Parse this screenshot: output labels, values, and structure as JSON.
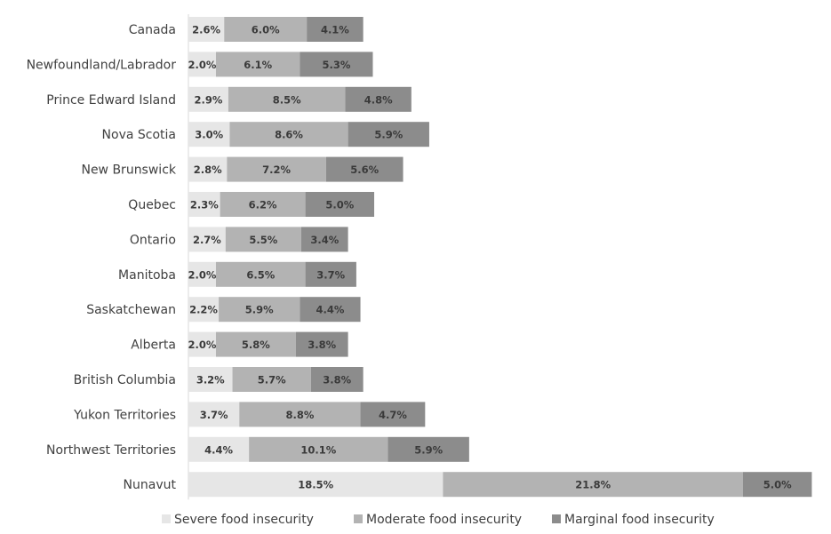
{
  "chart_data": {
    "type": "bar",
    "orientation": "horizontal",
    "stacked": true,
    "categories": [
      "Canada",
      "Newfoundland/Labrador",
      "Prince Edward Island",
      "Nova Scotia",
      "New Brunswick",
      "Quebec",
      "Ontario",
      "Manitoba",
      "Saskatchewan",
      "Alberta",
      "British Columbia",
      "Yukon Territories",
      "Northwest Territories",
      "Nunavut"
    ],
    "series": [
      {
        "name": "Severe food insecurity",
        "color": "#e6e6e6",
        "values": [
          2.6,
          2.0,
          2.9,
          3.0,
          2.8,
          2.3,
          2.7,
          2.0,
          2.2,
          2.0,
          3.2,
          3.7,
          4.4,
          18.5
        ],
        "labels": [
          "2.6%",
          "2.0%",
          "2.9%",
          "3.0%",
          "2.8%",
          "2.3%",
          "2.7%",
          "2.0%",
          "2.2%",
          "2.0%",
          "3.2%",
          "3.7%",
          "4.4%",
          "18.5%"
        ]
      },
      {
        "name": "Moderate food insecurity",
        "color": "#b3b3b3",
        "values": [
          6.0,
          6.1,
          8.5,
          8.6,
          7.2,
          6.2,
          5.5,
          6.5,
          5.9,
          5.8,
          5.7,
          8.8,
          10.1,
          21.8
        ],
        "labels": [
          "6.0%",
          "6.1%",
          "8.5%",
          "8.6%",
          "7.2%",
          "6.2%",
          "5.5%",
          "6.5%",
          "5.9%",
          "5.8%",
          "5.7%",
          "8.8%",
          "10.1%",
          "21.8%"
        ]
      },
      {
        "name": "Marginal food insecurity",
        "color": "#8c8c8c",
        "values": [
          4.1,
          5.3,
          4.8,
          5.9,
          5.6,
          5.0,
          3.4,
          3.7,
          4.4,
          3.8,
          3.8,
          4.7,
          5.9,
          5.0
        ],
        "labels": [
          "4.1%",
          "5.3%",
          "4.8%",
          "5.9%",
          "5.6%",
          "5.0%",
          "3.4%",
          "3.7%",
          "4.4%",
          "3.8%",
          "3.8%",
          "4.7%",
          "5.9%",
          "5.0%"
        ]
      }
    ],
    "xlim": [
      0,
      46.5
    ],
    "grid": false,
    "legend_position": "bottom",
    "title": "",
    "xlabel": "",
    "ylabel": ""
  }
}
